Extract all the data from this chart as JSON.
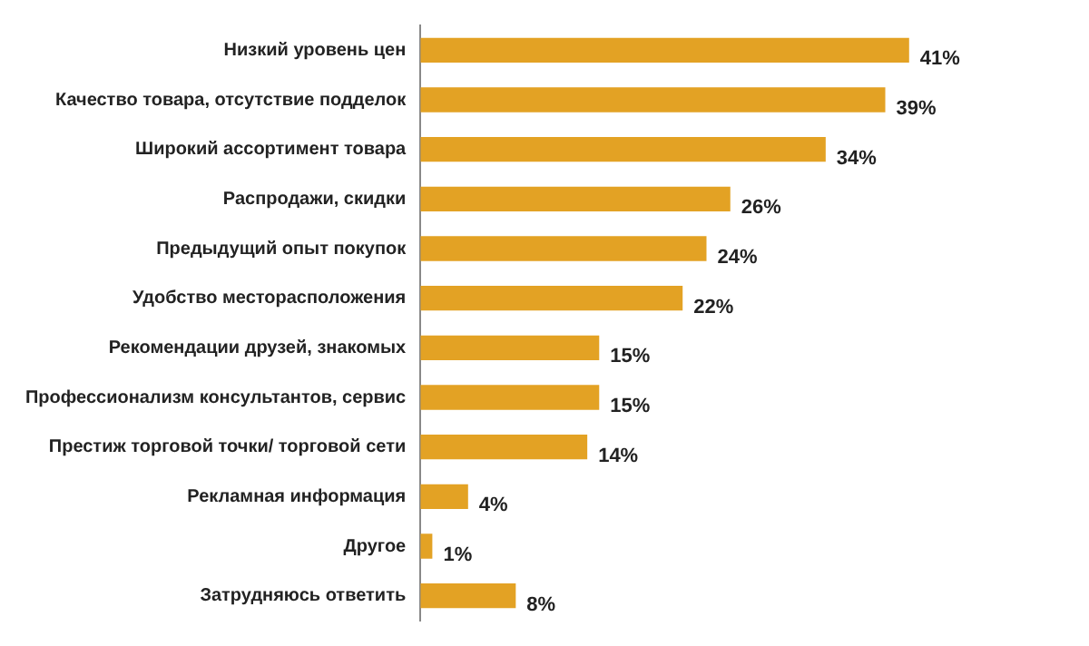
{
  "chart_data": {
    "type": "bar",
    "orientation": "horizontal",
    "categories": [
      "Низкий уровень цен",
      "Качество товара, отсутствие подделок",
      "Широкий ассортимент товара",
      "Распродажи, скидки",
      "Предыдущий опыт покупок",
      "Удобство месторасположения",
      "Рекомендации друзей, знакомых",
      "Профессионализм консультантов, сервис",
      "Престиж торговой точки/ торговой сети",
      "Рекламная информация",
      "Другое",
      "Затрудняюсь ответить"
    ],
    "values": [
      41,
      39,
      34,
      26,
      24,
      22,
      15,
      15,
      14,
      4,
      1,
      8
    ],
    "value_labels": [
      "41%",
      "39%",
      "34%",
      "26%",
      "24%",
      "22%",
      "15%",
      "15%",
      "14%",
      "4%",
      "1%",
      "8%"
    ],
    "color": "#e3a224",
    "legend": false,
    "tick_labels": "y"
  }
}
